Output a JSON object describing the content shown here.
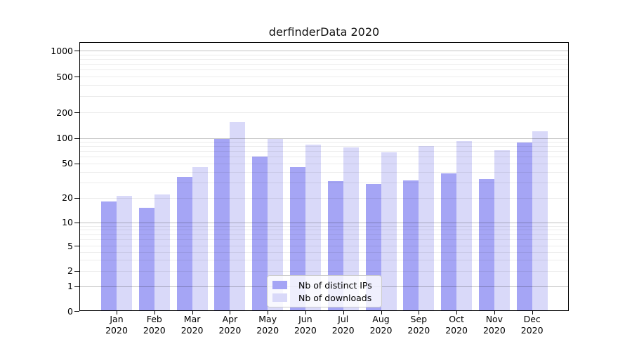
{
  "title": "derfinderData 2020",
  "legend": {
    "items": [
      {
        "label": "Nb of distinct IPs",
        "color": "#a5a5f5"
      },
      {
        "label": "Nb of downloads",
        "color": "#d9d9f9"
      }
    ]
  },
  "chart_data": {
    "type": "bar",
    "title": "derfinderData 2020",
    "categories": [
      "Jan",
      "Feb",
      "Mar",
      "Apr",
      "May",
      "Jun",
      "Jul",
      "Aug",
      "Sep",
      "Oct",
      "Nov",
      "Dec"
    ],
    "category_year": "2020",
    "series": [
      {
        "name": "Nb of distinct IPs",
        "color": "#a5a5f5",
        "values": [
          18,
          15,
          35,
          97,
          60,
          45,
          31,
          29,
          32,
          38,
          33,
          88
        ]
      },
      {
        "name": "Nb of downloads",
        "color": "#d9d9f9",
        "values": [
          21,
          22,
          45,
          155,
          97,
          83,
          78,
          68,
          81,
          93,
          72,
          120
        ]
      }
    ],
    "yscale": "symlog",
    "yticks": [
      0,
      1,
      2,
      5,
      10,
      20,
      50,
      100,
      200,
      500,
      1000
    ],
    "ylim": [
      0,
      1250
    ],
    "grid": true,
    "grid_major_at": [
      1,
      10,
      100,
      1000
    ],
    "legend_position": "lower center",
    "colors": {
      "grid_major": "#c2c2c2",
      "grid_minor": "#ebebeb",
      "axis": "#000000",
      "background": "#ffffff"
    }
  }
}
